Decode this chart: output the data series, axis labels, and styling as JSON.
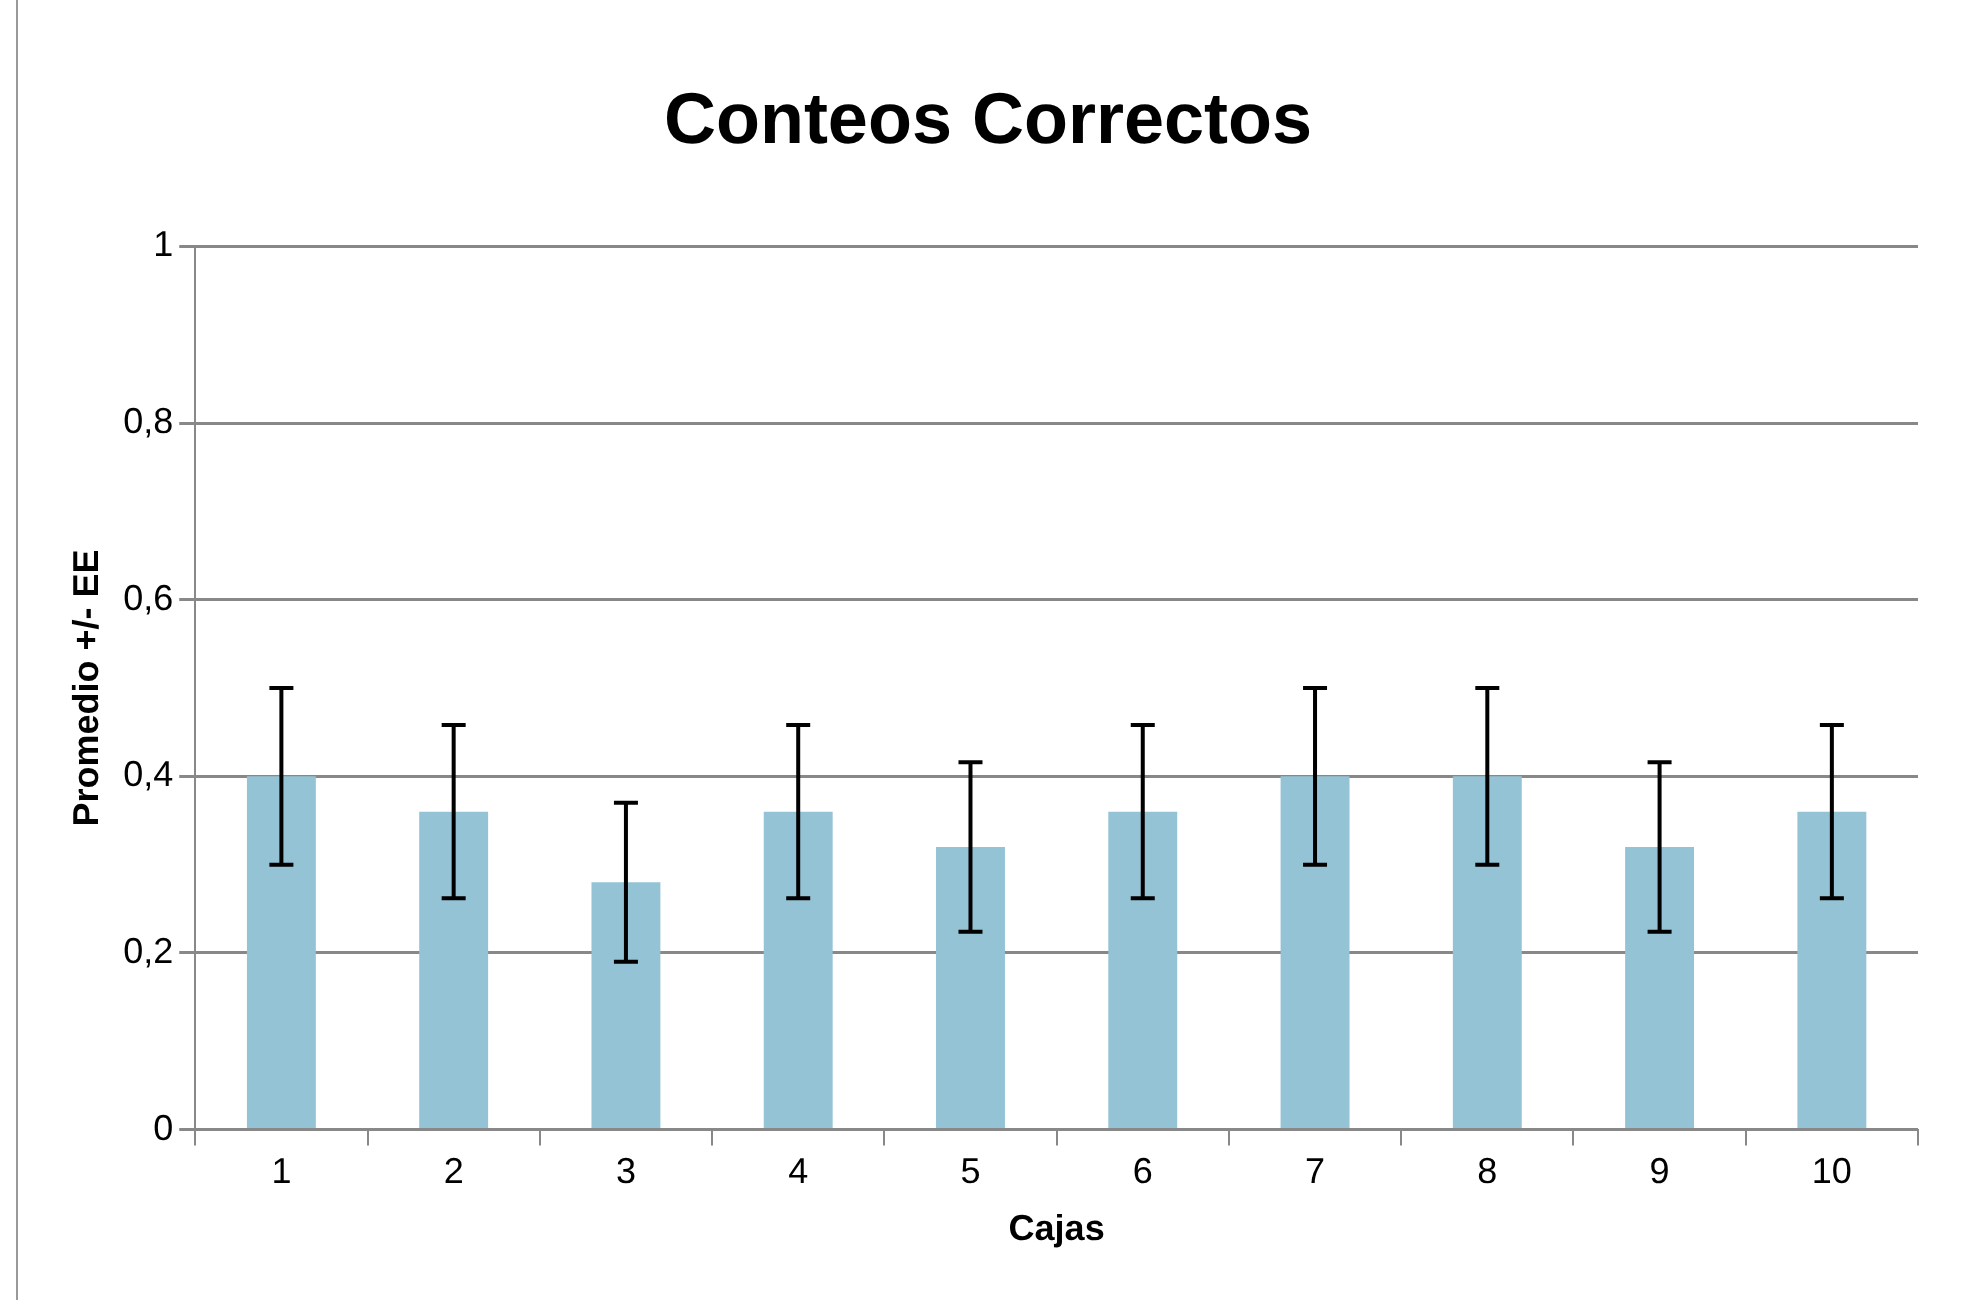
{
  "chart_data": {
    "type": "bar",
    "title": "Conteos Correctos",
    "xlabel": "Cajas",
    "ylabel": "Promedio +/- EE",
    "categories": [
      "1",
      "2",
      "3",
      "4",
      "5",
      "6",
      "7",
      "8",
      "9",
      "10"
    ],
    "values": [
      0.4,
      0.36,
      0.28,
      0.36,
      0.32,
      0.36,
      0.4,
      0.4,
      0.32,
      0.36
    ],
    "errors": [
      0.1,
      0.098,
      0.09,
      0.098,
      0.096,
      0.098,
      0.1,
      0.1,
      0.096,
      0.098
    ],
    "color": "#93c3d5",
    "ylim": [
      0,
      1
    ],
    "yticks": [
      {
        "value": 0,
        "label": "0"
      },
      {
        "value": 0.2,
        "label": "0,2"
      },
      {
        "value": 0.4,
        "label": "0,4"
      },
      {
        "value": 0.6,
        "label": "0,6"
      },
      {
        "value": 0.8,
        "label": "0,8"
      },
      {
        "value": 1,
        "label": "1"
      }
    ],
    "grid": "y"
  }
}
